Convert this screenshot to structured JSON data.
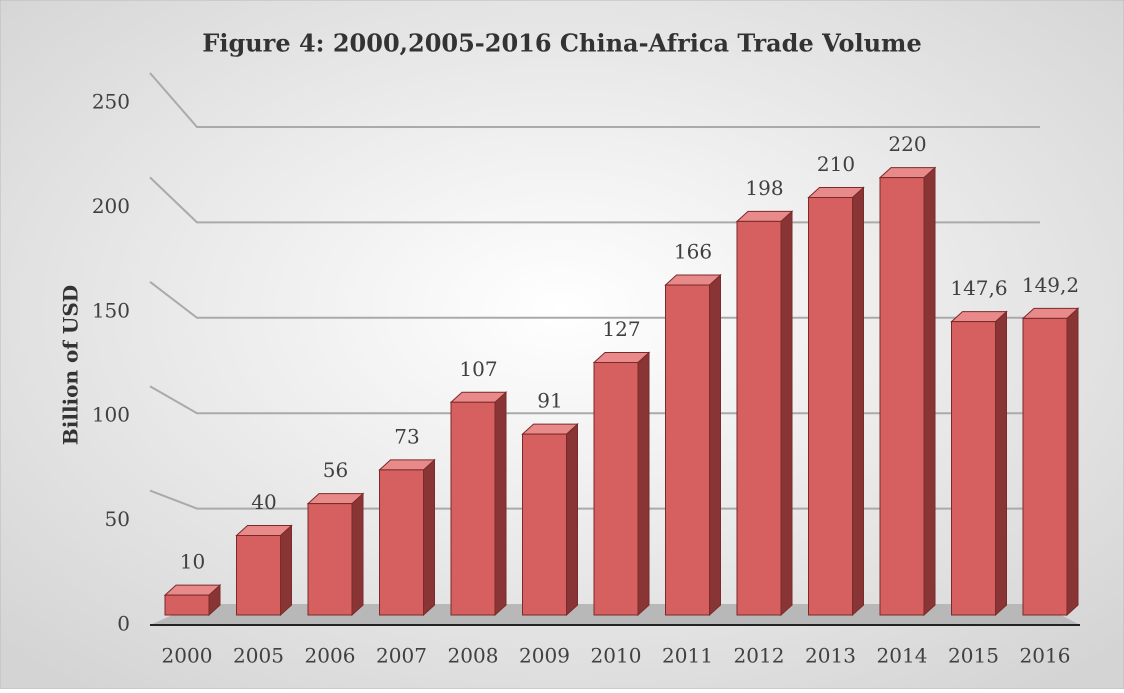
{
  "chart_data": {
    "type": "bar3d",
    "title": "Figure 4: 2000,2005-2016 China-Africa Trade Volume",
    "y_label": "Billion of USD",
    "categories": [
      "2000",
      "2005",
      "2006",
      "2007",
      "2008",
      "2009",
      "2010",
      "2011",
      "2012",
      "2013",
      "2014",
      "2015",
      "2016"
    ],
    "values": [
      10,
      40,
      56,
      73,
      107,
      91,
      127,
      166,
      198,
      210,
      220,
      147.6,
      149.2
    ],
    "value_labels": [
      "10",
      "40",
      "56",
      "73",
      "107",
      "91",
      "127",
      "166",
      "198",
      "210",
      "220",
      "147,6",
      "149,2"
    ],
    "color": "#d6605f",
    "ylim": [
      0,
      250
    ],
    "yticks": [
      0,
      50,
      100,
      150,
      200,
      250
    ],
    "grid": true
  }
}
